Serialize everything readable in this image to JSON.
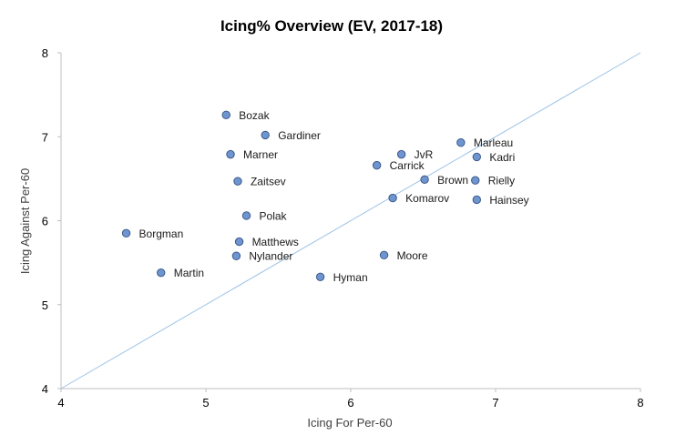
{
  "chart_data": {
    "type": "scatter",
    "title": "Icing% Overview (EV, 2017-18)",
    "xlabel": "Icing For Per-60",
    "ylabel": "Icing Against Per-60",
    "xlim": [
      4,
      8
    ],
    "ylim": [
      4,
      8
    ],
    "xticks": [
      4,
      5,
      6,
      7,
      8
    ],
    "yticks": [
      4,
      5,
      6,
      7,
      8
    ],
    "grid": false,
    "reference_line": {
      "from": [
        4,
        4
      ],
      "to": [
        8,
        8
      ],
      "color": "#9dc3e6"
    },
    "marker_color": "#6f95d0",
    "marker_edge_color": "#3c5a8a",
    "axis_color": "#bfbfbf",
    "points": [
      {
        "label": "Bozak",
        "x": 5.14,
        "y": 7.26
      },
      {
        "label": "Gardiner",
        "x": 5.41,
        "y": 7.02
      },
      {
        "label": "Marner",
        "x": 5.17,
        "y": 6.79
      },
      {
        "label": "Zaitsev",
        "x": 5.22,
        "y": 6.47
      },
      {
        "label": "Polak",
        "x": 5.28,
        "y": 6.06
      },
      {
        "label": "Borgman",
        "x": 4.45,
        "y": 5.85
      },
      {
        "label": "Matthews",
        "x": 5.23,
        "y": 5.75
      },
      {
        "label": "Nylander",
        "x": 5.21,
        "y": 5.58
      },
      {
        "label": "Martin",
        "x": 4.69,
        "y": 5.38
      },
      {
        "label": "Hyman",
        "x": 5.79,
        "y": 5.33
      },
      {
        "label": "Moore",
        "x": 6.23,
        "y": 5.59
      },
      {
        "label": "JvR",
        "x": 6.35,
        "y": 6.79
      },
      {
        "label": "Carrick",
        "x": 6.18,
        "y": 6.66
      },
      {
        "label": "Brown",
        "x": 6.51,
        "y": 6.49
      },
      {
        "label": "Komarov",
        "x": 6.29,
        "y": 6.27
      },
      {
        "label": "Marleau",
        "x": 6.76,
        "y": 6.93
      },
      {
        "label": "Kadri",
        "x": 6.87,
        "y": 6.76
      },
      {
        "label": "Rielly",
        "x": 6.86,
        "y": 6.48
      },
      {
        "label": "Hainsey",
        "x": 6.87,
        "y": 6.25
      }
    ]
  }
}
